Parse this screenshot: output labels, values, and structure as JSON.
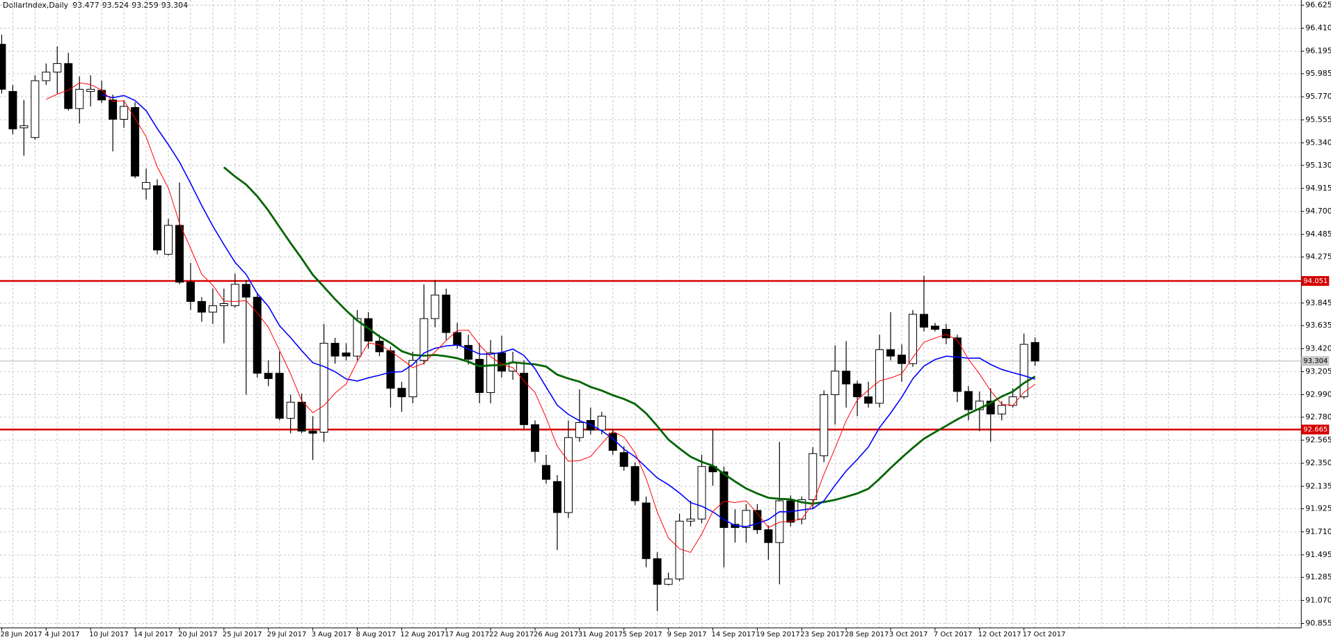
{
  "chart_data": {
    "type": "candlestick",
    "symbol": "DollarIndex,Daily",
    "categories": [
      "28 Jun 2017",
      null,
      null,
      null,
      "4 Jul 2017",
      null,
      null,
      null,
      "10 Jul 2017",
      null,
      null,
      null,
      "14 Jul 2017",
      null,
      null,
      null,
      "20 Jul 2017",
      null,
      null,
      null,
      "25 Jul 2017",
      null,
      null,
      null,
      "29 Jul 2017",
      null,
      null,
      null,
      "3 Aug 2017",
      null,
      null,
      null,
      "8 Aug 2017",
      null,
      null,
      null,
      "12 Aug 2017",
      null,
      null,
      null,
      "17 Aug 2017",
      null,
      null,
      null,
      "22 Aug 2017",
      null,
      null,
      null,
      "26 Aug 2017",
      null,
      null,
      null,
      "31 Aug 2017",
      null,
      null,
      null,
      "5 Sep 2017",
      null,
      null,
      null,
      "9 Sep 2017",
      null,
      null,
      null,
      "14 Sep 2017",
      null,
      null,
      null,
      "19 Sep 2017",
      null,
      null,
      null,
      "23 Sep 2017",
      null,
      null,
      null,
      "28 Sep 2017",
      null,
      null,
      null,
      "3 Oct 2017",
      null,
      null,
      null,
      "7 Oct 2017",
      null,
      null,
      null,
      "12 Oct 2017",
      null,
      null,
      null,
      "17 Oct 2017",
      null
    ],
    "open": [
      96.26,
      95.82,
      95.48,
      95.39,
      95.92,
      96.0,
      96.08,
      95.66,
      95.82,
      95.83,
      95.74,
      95.56,
      95.67,
      94.91,
      94.94,
      94.3,
      94.57,
      94.04,
      93.86,
      93.76,
      93.82,
      93.82,
      94.02,
      93.9,
      93.19,
      93.19,
      92.77,
      92.92,
      92.65,
      92.64,
      93.47,
      93.38,
      93.35,
      93.7,
      93.49,
      93.4,
      93.05,
      92.97,
      93.31,
      93.7,
      93.92,
      93.57,
      93.45,
      93.32,
      93.01,
      93.38,
      93.21,
      93.19,
      92.71,
      92.33,
      92.18,
      91.89,
      92.59,
      92.75,
      92.66,
      92.63,
      92.45,
      92.32,
      91.98,
      91.46,
      91.22,
      91.27,
      91.81,
      91.83,
      92.32,
      92.27,
      91.78,
      91.75,
      91.91,
      91.73,
      91.61,
      92.0,
      91.83,
      92.01,
      92.42,
      92.99,
      93.21,
      93.09,
      92.97,
      92.91,
      93.41,
      93.36,
      93.28,
      93.74,
      93.63,
      93.6,
      93.52,
      93.02,
      92.85,
      92.93,
      92.81,
      92.89,
      92.97,
      93.477
    ],
    "high": [
      96.35,
      95.88,
      95.74,
      95.97,
      96.08,
      96.24,
      96.18,
      95.96,
      95.97,
      95.92,
      95.79,
      95.74,
      95.72,
      95.1,
      95.0,
      94.63,
      94.97,
      94.22,
      93.9,
      93.98,
      93.98,
      94.12,
      94.06,
      93.94,
      93.31,
      93.39,
      92.99,
      93.0,
      92.79,
      93.65,
      93.52,
      93.47,
      93.78,
      93.76,
      93.55,
      93.44,
      93.11,
      93.39,
      94.02,
      94.06,
      93.98,
      93.66,
      93.55,
      93.47,
      93.5,
      93.54,
      93.39,
      93.31,
      92.75,
      92.43,
      92.24,
      92.75,
      93.04,
      92.87,
      92.83,
      92.67,
      92.51,
      92.36,
      92.04,
      91.52,
      91.33,
      91.88,
      92.0,
      92.43,
      92.66,
      92.32,
      91.92,
      91.97,
      91.97,
      91.77,
      92.55,
      92.05,
      92.04,
      92.5,
      93.03,
      93.45,
      93.49,
      93.12,
      93.11,
      93.55,
      93.76,
      93.46,
      93.78,
      94.1,
      93.66,
      93.65,
      93.55,
      93.07,
      93.02,
      93.05,
      92.93,
      93.05,
      93.56,
      93.524
    ],
    "low": [
      95.8,
      95.42,
      95.22,
      95.37,
      95.88,
      95.8,
      95.64,
      95.52,
      95.68,
      95.71,
      95.26,
      95.48,
      95.01,
      94.81,
      94.3,
      94.29,
      94.02,
      93.78,
      93.67,
      93.65,
      93.47,
      93.8,
      92.99,
      93.15,
      93.07,
      92.75,
      92.63,
      92.63,
      92.38,
      92.55,
      93.28,
      93.31,
      93.31,
      93.42,
      93.35,
      92.87,
      92.83,
      92.91,
      93.27,
      93.62,
      93.5,
      93.42,
      93.27,
      92.91,
      92.91,
      93.15,
      93.13,
      92.67,
      92.36,
      92.16,
      91.54,
      91.84,
      92.55,
      92.62,
      92.62,
      92.43,
      92.28,
      91.96,
      91.38,
      90.97,
      91.21,
      91.25,
      91.76,
      91.79,
      92.14,
      91.38,
      91.61,
      91.61,
      91.69,
      91.45,
      91.22,
      91.76,
      91.78,
      91.93,
      92.36,
      92.71,
      92.87,
      92.79,
      92.87,
      92.87,
      93.31,
      93.11,
      93.25,
      93.58,
      93.58,
      93.46,
      92.92,
      92.75,
      92.65,
      92.55,
      92.75,
      92.87,
      92.95,
      93.259
    ],
    "close": [
      95.84,
      95.47,
      95.5,
      95.92,
      96.0,
      96.08,
      95.66,
      95.84,
      95.84,
      95.74,
      95.56,
      95.68,
      95.03,
      94.97,
      94.34,
      94.57,
      94.04,
      93.86,
      93.76,
      93.82,
      93.84,
      94.02,
      93.9,
      93.19,
      93.14,
      92.77,
      92.92,
      92.65,
      92.63,
      93.47,
      93.35,
      93.35,
      93.7,
      93.49,
      93.39,
      93.05,
      92.97,
      93.31,
      93.7,
      93.92,
      93.57,
      93.45,
      93.32,
      93.01,
      93.38,
      93.21,
      93.29,
      92.71,
      92.46,
      92.2,
      91.89,
      92.59,
      92.73,
      92.66,
      92.79,
      92.47,
      92.32,
      92.0,
      91.46,
      91.22,
      91.27,
      91.81,
      91.83,
      92.32,
      92.27,
      91.75,
      91.75,
      91.91,
      91.73,
      91.61,
      92.0,
      91.8,
      92.01,
      92.44,
      92.99,
      93.21,
      93.09,
      92.97,
      92.91,
      93.41,
      93.35,
      93.28,
      93.74,
      93.62,
      93.6,
      93.52,
      93.02,
      92.85,
      92.93,
      92.81,
      92.89,
      92.97,
      93.46,
      93.304
    ],
    "ylim": [
      90.814,
      96.673
    ],
    "yticks": [
      {
        "value": 90.855,
        "label": "90.855"
      },
      {
        "value": 91.07,
        "label": "91.070"
      },
      {
        "value": 91.285,
        "label": "91.285"
      },
      {
        "value": 91.495,
        "label": "91.495"
      },
      {
        "value": 91.71,
        "label": "91.710"
      },
      {
        "value": 91.925,
        "label": "91.925"
      },
      {
        "value": 92.135,
        "label": "92.135"
      },
      {
        "value": 92.35,
        "label": "92.350"
      },
      {
        "value": 92.565,
        "label": "92.565"
      },
      {
        "value": 92.78,
        "label": "92.780"
      },
      {
        "value": 92.99,
        "label": "92.990"
      },
      {
        "value": 93.205,
        "label": "93.205"
      },
      {
        "value": 93.42,
        "label": "93.420"
      },
      {
        "value": 93.635,
        "label": "93.635"
      },
      {
        "value": 93.845,
        "label": "93.845"
      },
      {
        "value": 94.275,
        "label": "94.275"
      },
      {
        "value": 94.485,
        "label": "94.485"
      },
      {
        "value": 94.7,
        "label": "94.700"
      },
      {
        "value": 94.915,
        "label": "94.915"
      },
      {
        "value": 95.13,
        "label": "95.130"
      },
      {
        "value": 95.34,
        "label": "95.340"
      },
      {
        "value": 95.555,
        "label": "95.555"
      },
      {
        "value": 95.77,
        "label": "95.770"
      },
      {
        "value": 95.985,
        "label": "95.985"
      },
      {
        "value": 96.195,
        "label": "96.195"
      },
      {
        "value": 96.41,
        "label": "96.410"
      },
      {
        "value": 96.625,
        "label": "96.625"
      }
    ],
    "levels": [
      94.051,
      92.665
    ],
    "level_color": "#d40000",
    "grid": true
  }
}
